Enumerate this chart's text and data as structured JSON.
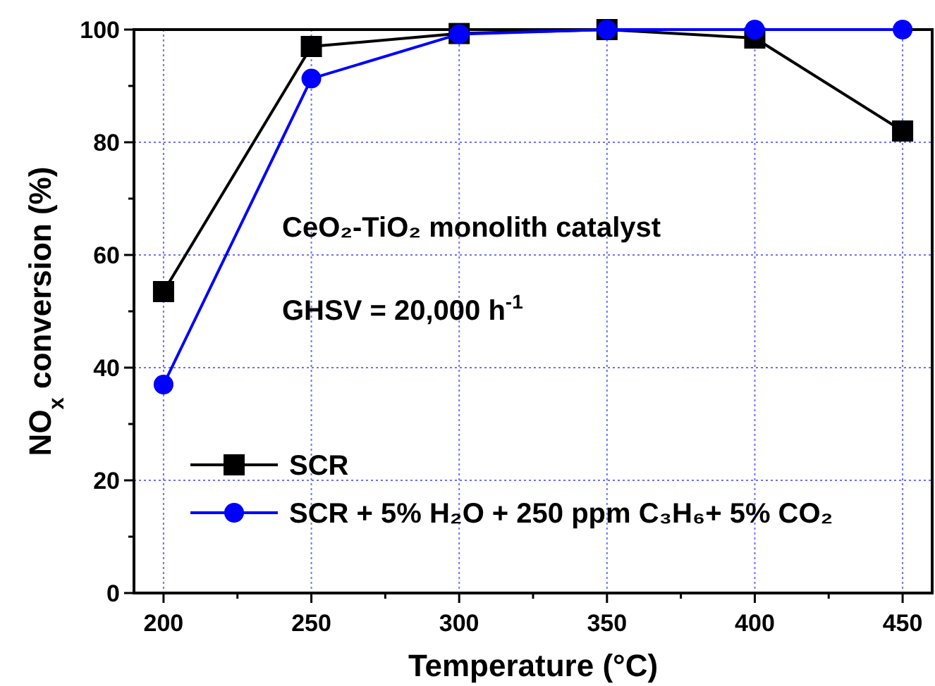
{
  "chart_data": {
    "type": "line",
    "xlabel": "Temperature  (°C)",
    "ylabel": "NO$_{x}$ conversion (%)",
    "x": [
      200,
      250,
      300,
      350,
      400,
      450
    ],
    "series": [
      {
        "name": "SCR",
        "color": "#000000",
        "marker": "square",
        "values": [
          53.5,
          97,
          99.3,
          100,
          98.5,
          82
        ]
      },
      {
        "name": "SCR + 5% H₂O + 250 ppm C₃H₆+ 5% CO₂",
        "color": "#0000ff",
        "marker": "circle",
        "values": [
          37,
          91.3,
          99.2,
          100,
          100,
          100
        ]
      }
    ],
    "xlim": [
      190,
      460
    ],
    "ylim": [
      0,
      100
    ],
    "xticks": [
      200,
      {
        "value": 225,
        "label": null
      },
      250,
      {
        "value": 275,
        "label": null
      },
      300,
      {
        "value": 325,
        "label": null
      },
      350,
      {
        "value": 375,
        "label": null
      },
      400,
      {
        "value": 425,
        "label": null
      },
      450
    ],
    "yticks": [
      0,
      {
        "value": 10,
        "label": null
      },
      20,
      {
        "value": 30,
        "label": null
      },
      40,
      {
        "value": 50,
        "label": null
      },
      60,
      {
        "value": 70,
        "label": null
      },
      80,
      {
        "value": 90,
        "label": null
      },
      100
    ],
    "grid": true,
    "legend": "bottom left",
    "line_style": "solid",
    "annotations": [
      "CeO₂-TiO₂ monolith catalyst",
      "GHSV = 20,000 h$^{-1}$"
    ]
  }
}
